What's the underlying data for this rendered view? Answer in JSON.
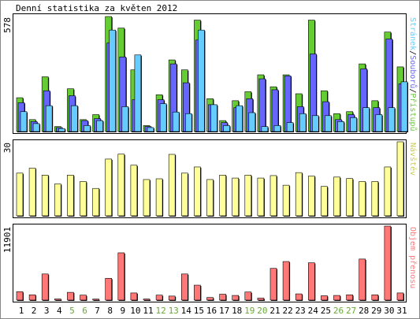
{
  "title": "Denní statistika za květen 2012",
  "colors": {
    "hits": "#66cc33",
    "files": "#6666ff",
    "pages": "#66ccff",
    "visits": "#ffff99",
    "kbytes": "#ff7777",
    "weekend_label": "#66aa33",
    "frame": "#888888"
  },
  "chart_data": [
    {
      "type": "bar",
      "panel": "hits",
      "ymax_label": "578",
      "ylim": [
        0,
        578
      ],
      "legend": {
        "pages": "Stránek",
        "separator1": "/",
        "files": "Souborů",
        "separator2": "/",
        "hits": "Přístupů"
      },
      "categories": [
        "1",
        "2",
        "3",
        "4",
        "5",
        "6",
        "7",
        "8",
        "9",
        "10",
        "11",
        "12",
        "13",
        "14",
        "15",
        "16",
        "17",
        "18",
        "19",
        "20",
        "21",
        "22",
        "23",
        "24",
        "25",
        "26",
        "27",
        "28",
        "29",
        "30",
        "31"
      ],
      "series": [
        {
          "name": "Přístupů",
          "values": [
            170,
            60,
            275,
            25,
            215,
            60,
            85,
            578,
            520,
            310,
            30,
            185,
            360,
            310,
            560,
            165,
            55,
            155,
            200,
            285,
            225,
            285,
            190,
            560,
            205,
            90,
            100,
            340,
            155,
            500,
            325
          ]
        },
        {
          "name": "Souborů",
          "values": [
            145,
            50,
            205,
            20,
            180,
            55,
            65,
            445,
            375,
            160,
            25,
            160,
            340,
            245,
            460,
            135,
            45,
            120,
            165,
            265,
            210,
            280,
            125,
            390,
            150,
            60,
            85,
            315,
            120,
            465,
            240
          ]
        },
        {
          "name": "Stránek",
          "values": [
            100,
            40,
            130,
            15,
            130,
            30,
            55,
            510,
            125,
            385,
            20,
            140,
            98,
            90,
            510,
            135,
            30,
            130,
            95,
            25,
            30,
            45,
            90,
            80,
            80,
            50,
            70,
            120,
            85,
            120,
            250
          ]
        }
      ]
    },
    {
      "type": "bar",
      "panel": "visits",
      "ymax_label": "30",
      "ylim": [
        0,
        30
      ],
      "legend": "Návštěv",
      "categories": [
        "1",
        "2",
        "3",
        "4",
        "5",
        "6",
        "7",
        "8",
        "9",
        "10",
        "11",
        "12",
        "13",
        "14",
        "15",
        "16",
        "17",
        "18",
        "19",
        "20",
        "21",
        "22",
        "23",
        "24",
        "25",
        "26",
        "27",
        "28",
        "29",
        "30",
        "31"
      ],
      "series": [
        {
          "name": "Návštěv",
          "values": [
            17.3,
            19.3,
            16.5,
            12.9,
            16.5,
            13.9,
            11.1,
            23.0,
            25.0,
            20.5,
            14.7,
            15.0,
            24.9,
            17.3,
            19.8,
            14.7,
            16.5,
            15.3,
            16.5,
            15.3,
            16.3,
            12.4,
            17.5,
            16.1,
            11.9,
            15.7,
            15.1,
            13.9,
            13.9,
            19.8,
            30.0
          ]
        }
      ]
    },
    {
      "type": "bar",
      "panel": "kbytes",
      "ymax_label": "11901",
      "ylim": [
        0,
        11901
      ],
      "legend": "Objem přenosu",
      "categories": [
        "1",
        "2",
        "3",
        "4",
        "5",
        "6",
        "7",
        "8",
        "9",
        "10",
        "11",
        "12",
        "13",
        "14",
        "15",
        "16",
        "17",
        "18",
        "19",
        "20",
        "21",
        "22",
        "23",
        "24",
        "25",
        "26",
        "27",
        "28",
        "29",
        "30",
        "31"
      ],
      "series": [
        {
          "name": "Objem přenosu",
          "values": [
            1350,
            850,
            4200,
            180,
            1250,
            800,
            160,
            3500,
            7600,
            1150,
            170,
            800,
            650,
            4200,
            2400,
            420,
            950,
            750,
            1300,
            320,
            5100,
            6200,
            1000,
            6000,
            700,
            750,
            850,
            6600,
            850,
            11901,
            1150
          ]
        }
      ]
    }
  ],
  "x_labels": [
    {
      "text": "1",
      "weekend": false
    },
    {
      "text": "2",
      "weekend": false
    },
    {
      "text": "3",
      "weekend": false
    },
    {
      "text": "4",
      "weekend": false
    },
    {
      "text": "5",
      "weekend": true
    },
    {
      "text": "6",
      "weekend": true
    },
    {
      "text": "7",
      "weekend": false
    },
    {
      "text": "8",
      "weekend": false
    },
    {
      "text": "9",
      "weekend": false
    },
    {
      "text": "10",
      "weekend": false
    },
    {
      "text": "11",
      "weekend": false
    },
    {
      "text": "12",
      "weekend": true
    },
    {
      "text": "13",
      "weekend": true
    },
    {
      "text": "14",
      "weekend": false
    },
    {
      "text": "15",
      "weekend": false
    },
    {
      "text": "16",
      "weekend": false
    },
    {
      "text": "17",
      "weekend": false
    },
    {
      "text": "18",
      "weekend": false
    },
    {
      "text": "19",
      "weekend": true
    },
    {
      "text": "20",
      "weekend": true
    },
    {
      "text": "21",
      "weekend": false
    },
    {
      "text": "22",
      "weekend": false
    },
    {
      "text": "23",
      "weekend": false
    },
    {
      "text": "24",
      "weekend": false
    },
    {
      "text": "25",
      "weekend": false
    },
    {
      "text": "26",
      "weekend": true
    },
    {
      "text": "27",
      "weekend": true
    },
    {
      "text": "28",
      "weekend": false
    },
    {
      "text": "29",
      "weekend": false
    },
    {
      "text": "30",
      "weekend": false
    },
    {
      "text": "31",
      "weekend": false
    }
  ]
}
